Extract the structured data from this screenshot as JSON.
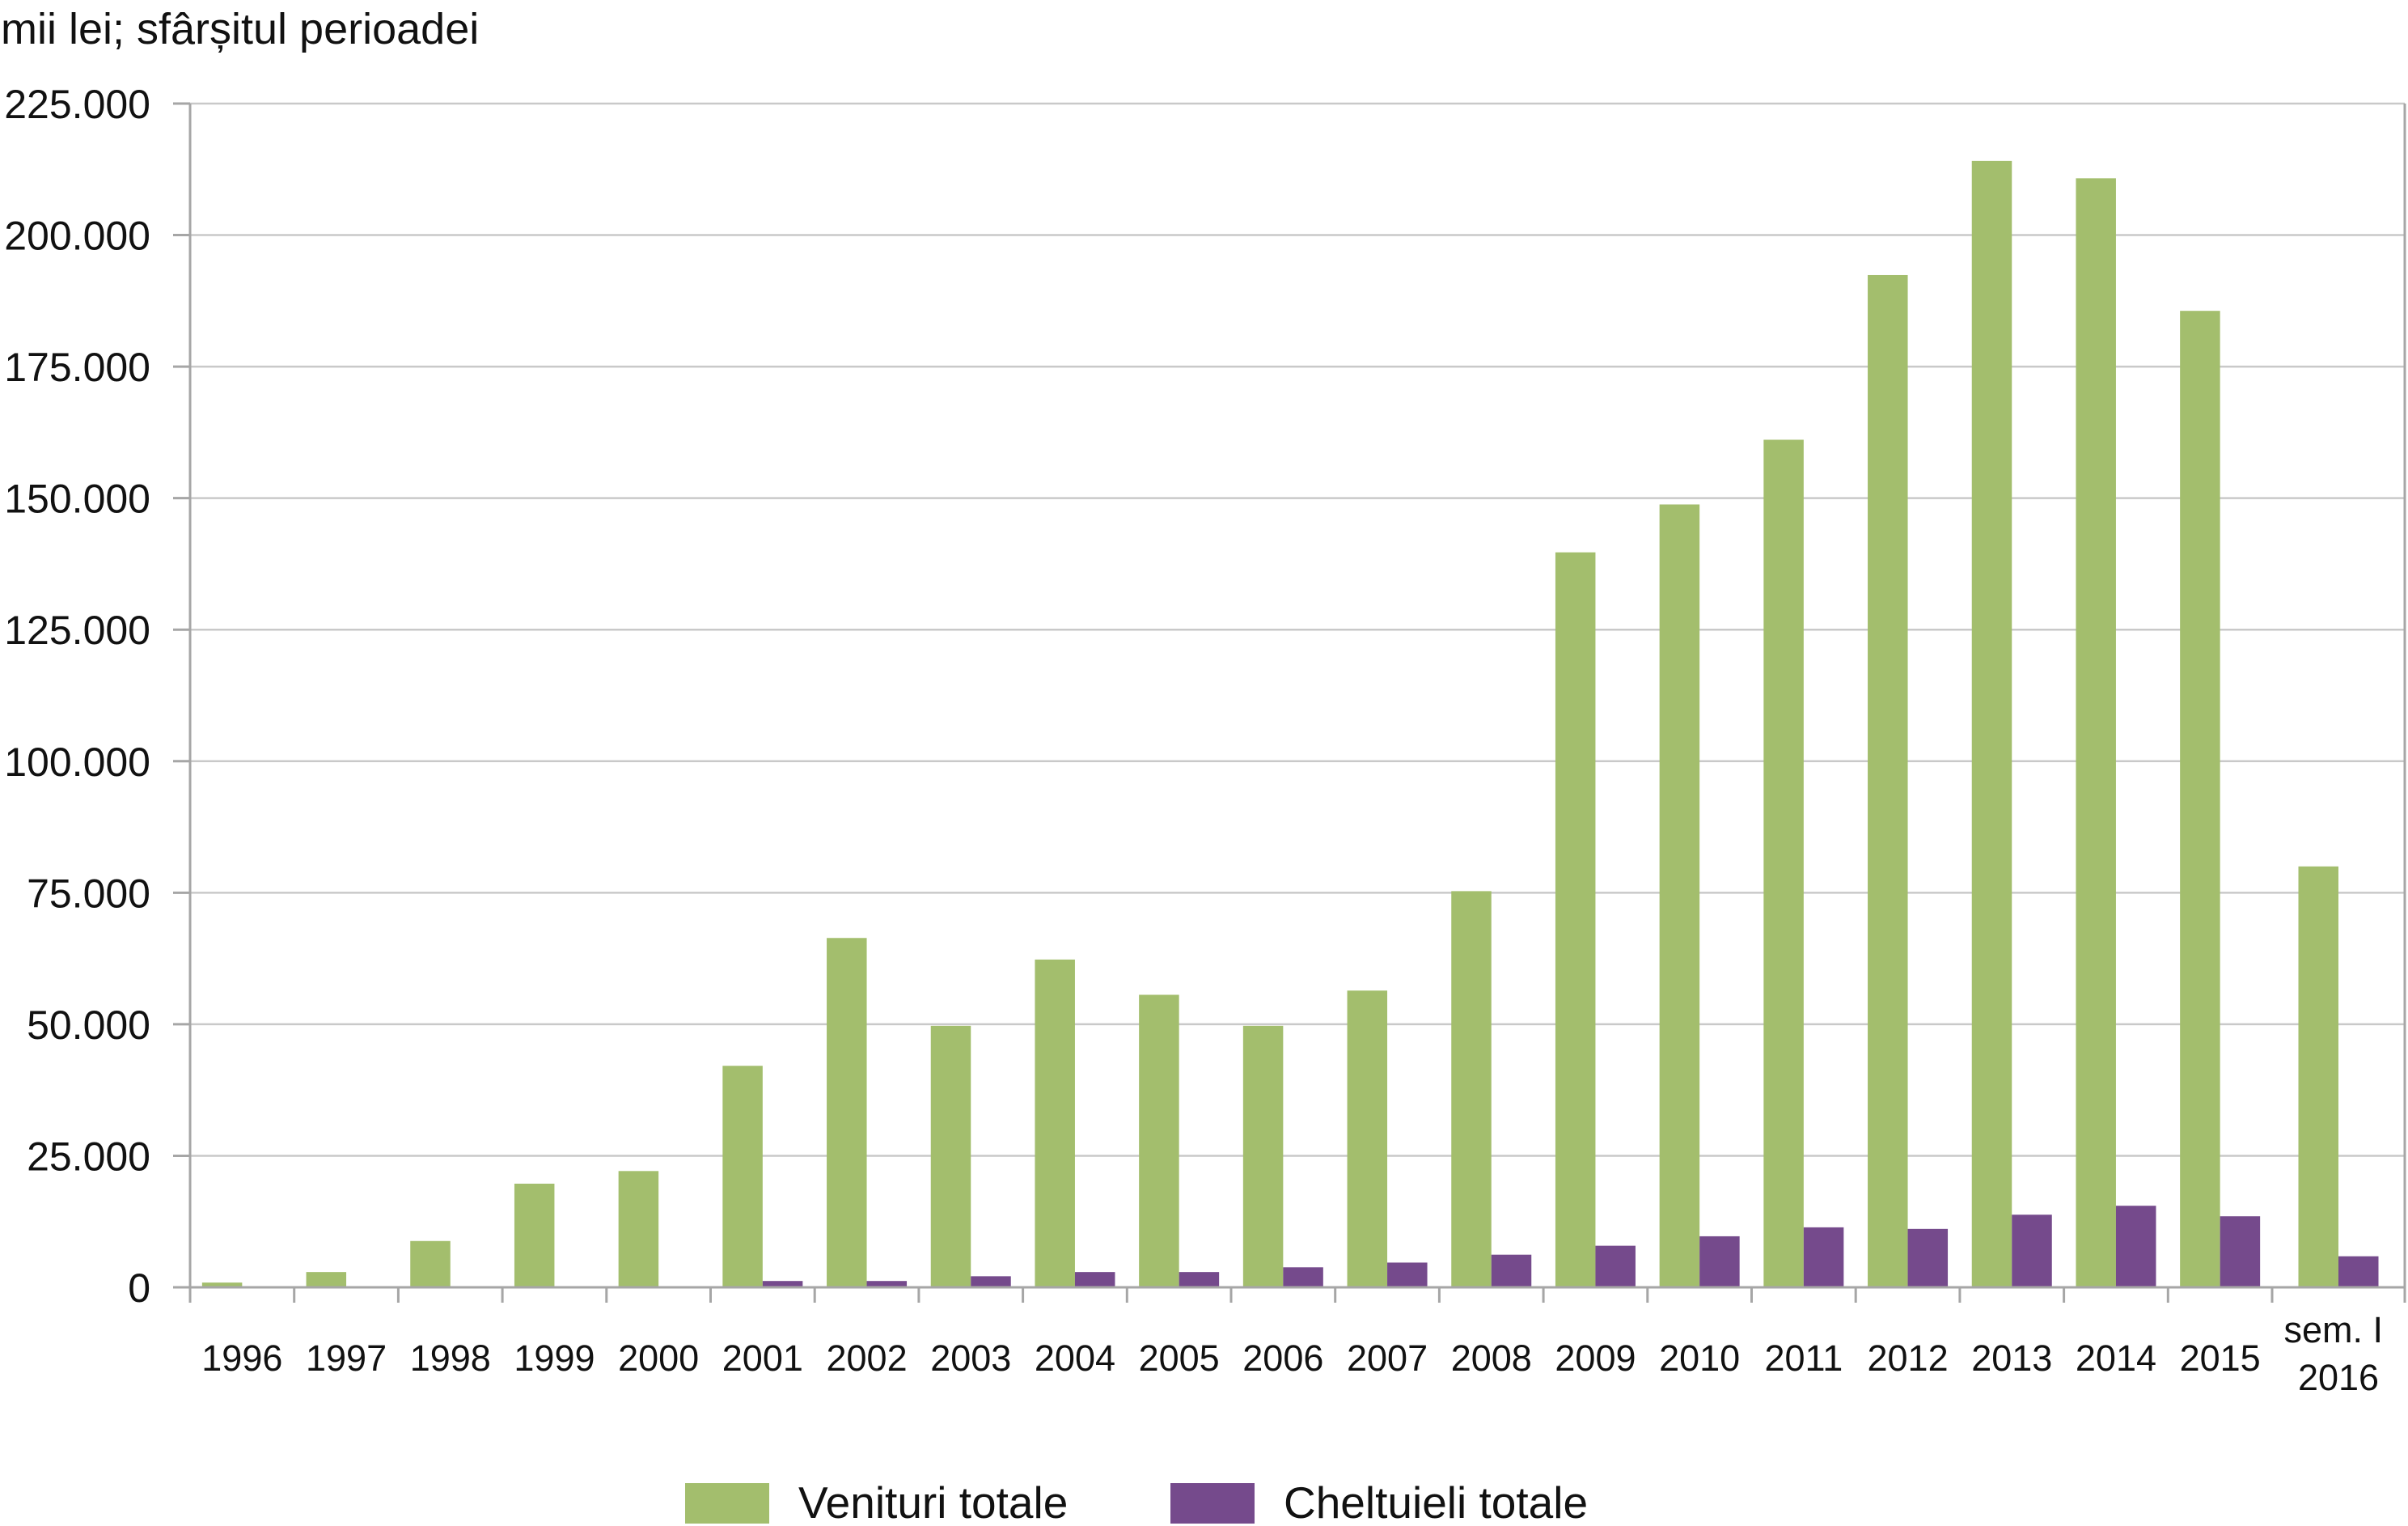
{
  "chart_data": {
    "type": "bar",
    "ylabel": "mii lei; sfârșitul perioadei",
    "ylim": [
      0,
      225000
    ],
    "yticks": [
      0,
      25000,
      50000,
      75000,
      100000,
      125000,
      150000,
      175000,
      200000,
      225000
    ],
    "ytick_labels": [
      "0",
      "25.000",
      "50.000",
      "75.000",
      "100.000",
      "125.000",
      "150.000",
      "175.000",
      "200.000",
      "225.000"
    ],
    "grid": true,
    "legend": "bottom",
    "categories": [
      "1996",
      "1997",
      "1998",
      "1999",
      "2000",
      "2001",
      "2002",
      "2003",
      "2004",
      "2005",
      "2006",
      "2007",
      "2008",
      "2009",
      "2010",
      "2011",
      "2012",
      "2013",
      "2014",
      "2015",
      "sem. I 2016"
    ],
    "series": [
      {
        "name": "Venituri totale",
        "color": "#a3be6d",
        "values": [
          900,
          2900,
          8800,
          19700,
          22100,
          42100,
          66400,
          49700,
          62300,
          55600,
          49700,
          56400,
          75300,
          139700,
          148800,
          161100,
          192400,
          214100,
          210800,
          185600,
          80000
        ]
      },
      {
        "name": "Cheltuieli totale",
        "color": "#754a8c",
        "values": [
          0,
          0,
          0,
          0,
          0,
          1200,
          1200,
          2100,
          2900,
          2900,
          3800,
          4700,
          6200,
          7900,
          9700,
          11400,
          11100,
          13800,
          15500,
          13500,
          5900
        ]
      }
    ]
  }
}
